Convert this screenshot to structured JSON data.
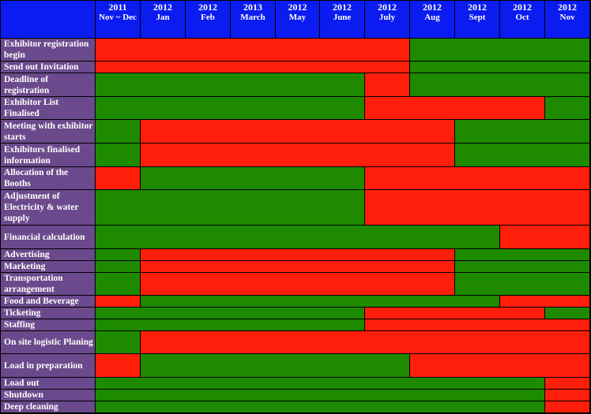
{
  "colors": {
    "planned": "#1e8a00",
    "active": "#ff1e0a",
    "header": "#0a1cf0",
    "label_bg": "#6a4a8c"
  },
  "chart_data": {
    "type": "table",
    "columns": [
      {
        "year": "2011",
        "month": "Nov ~ Dec"
      },
      {
        "year": "2012",
        "month": "Jan"
      },
      {
        "year": "2012",
        "month": "Feb"
      },
      {
        "year": "2013",
        "month": "March"
      },
      {
        "year": "2012",
        "month": "May"
      },
      {
        "year": "2012",
        "month": "June"
      },
      {
        "year": "2012",
        "month": "July"
      },
      {
        "year": "2012",
        "month": "Aug"
      },
      {
        "year": "2012",
        "month": "Sept"
      },
      {
        "year": "2012",
        "month": "Oct"
      },
      {
        "year": "2012",
        "month": "Nov"
      }
    ],
    "tasks": [
      {
        "label": "Exhibitor registration begin",
        "segments": [
          [
            0,
            6,
            "active"
          ],
          [
            7,
            10,
            "planned"
          ]
        ]
      },
      {
        "label": "Send out Invitation",
        "segments": [
          [
            0,
            6,
            "active"
          ],
          [
            7,
            10,
            "planned"
          ]
        ]
      },
      {
        "label": "Deadline of registration",
        "segments": [
          [
            0,
            5,
            "planned"
          ],
          [
            6,
            6,
            "active"
          ],
          [
            7,
            10,
            "planned"
          ]
        ]
      },
      {
        "label": "Exhibitor List Finalised",
        "segments": [
          [
            0,
            5,
            "planned"
          ],
          [
            6,
            9,
            "active"
          ],
          [
            10,
            10,
            "planned"
          ]
        ]
      },
      {
        "label": "Meeting with exhibitor starts",
        "segments": [
          [
            0,
            0,
            "planned"
          ],
          [
            1,
            7,
            "active"
          ],
          [
            8,
            10,
            "planned"
          ]
        ]
      },
      {
        "label": "Exhibitors finalised information",
        "segments": [
          [
            0,
            0,
            "planned"
          ],
          [
            1,
            7,
            "active"
          ],
          [
            8,
            10,
            "planned"
          ]
        ]
      },
      {
        "label": "Allocation of the Booths",
        "segments": [
          [
            0,
            0,
            "active"
          ],
          [
            1,
            5,
            "planned"
          ],
          [
            6,
            10,
            "active"
          ]
        ]
      },
      {
        "label": "Adjustment of Electricity & water supply",
        "segments": [
          [
            0,
            5,
            "planned"
          ],
          [
            6,
            10,
            "active"
          ]
        ]
      },
      {
        "label": "Financial calculation",
        "segments": [
          [
            0,
            8,
            "planned"
          ],
          [
            9,
            10,
            "active"
          ]
        ]
      },
      {
        "label": "Advertising",
        "segments": [
          [
            0,
            0,
            "planned"
          ],
          [
            1,
            7,
            "active"
          ],
          [
            8,
            10,
            "planned"
          ]
        ]
      },
      {
        "label": "Marketing",
        "segments": [
          [
            0,
            0,
            "planned"
          ],
          [
            1,
            7,
            "active"
          ],
          [
            8,
            10,
            "planned"
          ]
        ]
      },
      {
        "label": "Transportation arrangement",
        "segments": [
          [
            0,
            0,
            "planned"
          ],
          [
            1,
            7,
            "active"
          ],
          [
            8,
            10,
            "planned"
          ]
        ]
      },
      {
        "label": "Food and Beverage",
        "segments": [
          [
            0,
            0,
            "active"
          ],
          [
            1,
            8,
            "planned"
          ],
          [
            9,
            10,
            "active"
          ]
        ]
      },
      {
        "label": "Ticketing",
        "segments": [
          [
            0,
            5,
            "planned"
          ],
          [
            6,
            9,
            "active"
          ],
          [
            10,
            10,
            "planned"
          ]
        ]
      },
      {
        "label": "Staffing",
        "segments": [
          [
            0,
            5,
            "planned"
          ],
          [
            6,
            10,
            "active"
          ]
        ]
      },
      {
        "label": "On site logistic Planing",
        "segments": [
          [
            0,
            0,
            "planned"
          ],
          [
            1,
            10,
            "active"
          ]
        ]
      },
      {
        "label": "Load in preparation",
        "segments": [
          [
            0,
            0,
            "active"
          ],
          [
            1,
            6,
            "planned"
          ],
          [
            7,
            10,
            "active"
          ]
        ]
      },
      {
        "label": "Load out",
        "segments": [
          [
            0,
            9,
            "planned"
          ],
          [
            10,
            10,
            "active"
          ]
        ]
      },
      {
        "label": "Shutdown",
        "segments": [
          [
            0,
            9,
            "planned"
          ],
          [
            10,
            10,
            "active"
          ]
        ]
      },
      {
        "label": "Deep cleaning",
        "segments": [
          [
            0,
            9,
            "planned"
          ],
          [
            10,
            10,
            "active"
          ]
        ]
      }
    ]
  }
}
